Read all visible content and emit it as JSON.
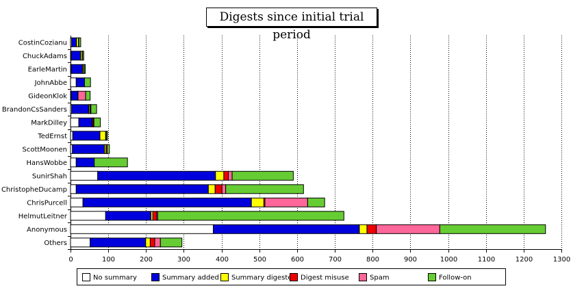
{
  "chart_data": {
    "type": "bar",
    "orientation": "horizontal",
    "stacked": true,
    "title": "Digests since initial trial period",
    "categories": [
      "CostinCozianu",
      "ChuckAdams",
      "EarleMartin",
      "JohnAbbe",
      "GideonKlok",
      "BrandonCsSanders",
      "MarkDilley",
      "TedErnst",
      "ScottMoonen",
      "HansWobbe",
      "SunirShah",
      "ChristopheDucamp",
      "ChrisPurcell",
      "HelmutLeitner",
      "Anonymous",
      "Others"
    ],
    "series": [
      {
        "name": "No summary",
        "color": "#ffffff",
        "values": [
          3,
          2,
          2,
          15,
          2,
          3,
          22,
          6,
          5,
          15,
          72,
          15,
          33,
          93,
          378,
          52
        ]
      },
      {
        "name": "Summary added",
        "color": "#0000dd",
        "values": [
          13,
          25,
          30,
          22,
          17,
          45,
          35,
          72,
          85,
          48,
          312,
          350,
          446,
          120,
          387,
          147
        ]
      },
      {
        "name": "Summary digested",
        "color": "#ffff00",
        "values": [
          5,
          4,
          3,
          0,
          1,
          3,
          1,
          15,
          4,
          0,
          22,
          18,
          33,
          5,
          20,
          12
        ]
      },
      {
        "name": "Digest misuse",
        "color": "#ee0000",
        "values": [
          1,
          1,
          1,
          0,
          0,
          2,
          3,
          2,
          3,
          0,
          12,
          18,
          3,
          10,
          25,
          12
        ]
      },
      {
        "name": "Spam",
        "color": "#ff6699",
        "values": [
          0,
          0,
          0,
          0,
          20,
          1,
          1,
          0,
          0,
          0,
          10,
          10,
          113,
          3,
          168,
          15
        ]
      },
      {
        "name": "Follow-on",
        "color": "#66cc33",
        "values": [
          5,
          3,
          3,
          16,
          12,
          15,
          17,
          3,
          6,
          88,
          162,
          206,
          45,
          493,
          280,
          57
        ]
      }
    ],
    "xlim": [
      0,
      1300
    ],
    "xticks": [
      "0",
      "100",
      "200",
      "300",
      "400",
      "500",
      "600",
      "700",
      "800",
      "900",
      "1000",
      "1100",
      "1200",
      "1300"
    ],
    "grid": true,
    "legend_position": "bottom"
  }
}
